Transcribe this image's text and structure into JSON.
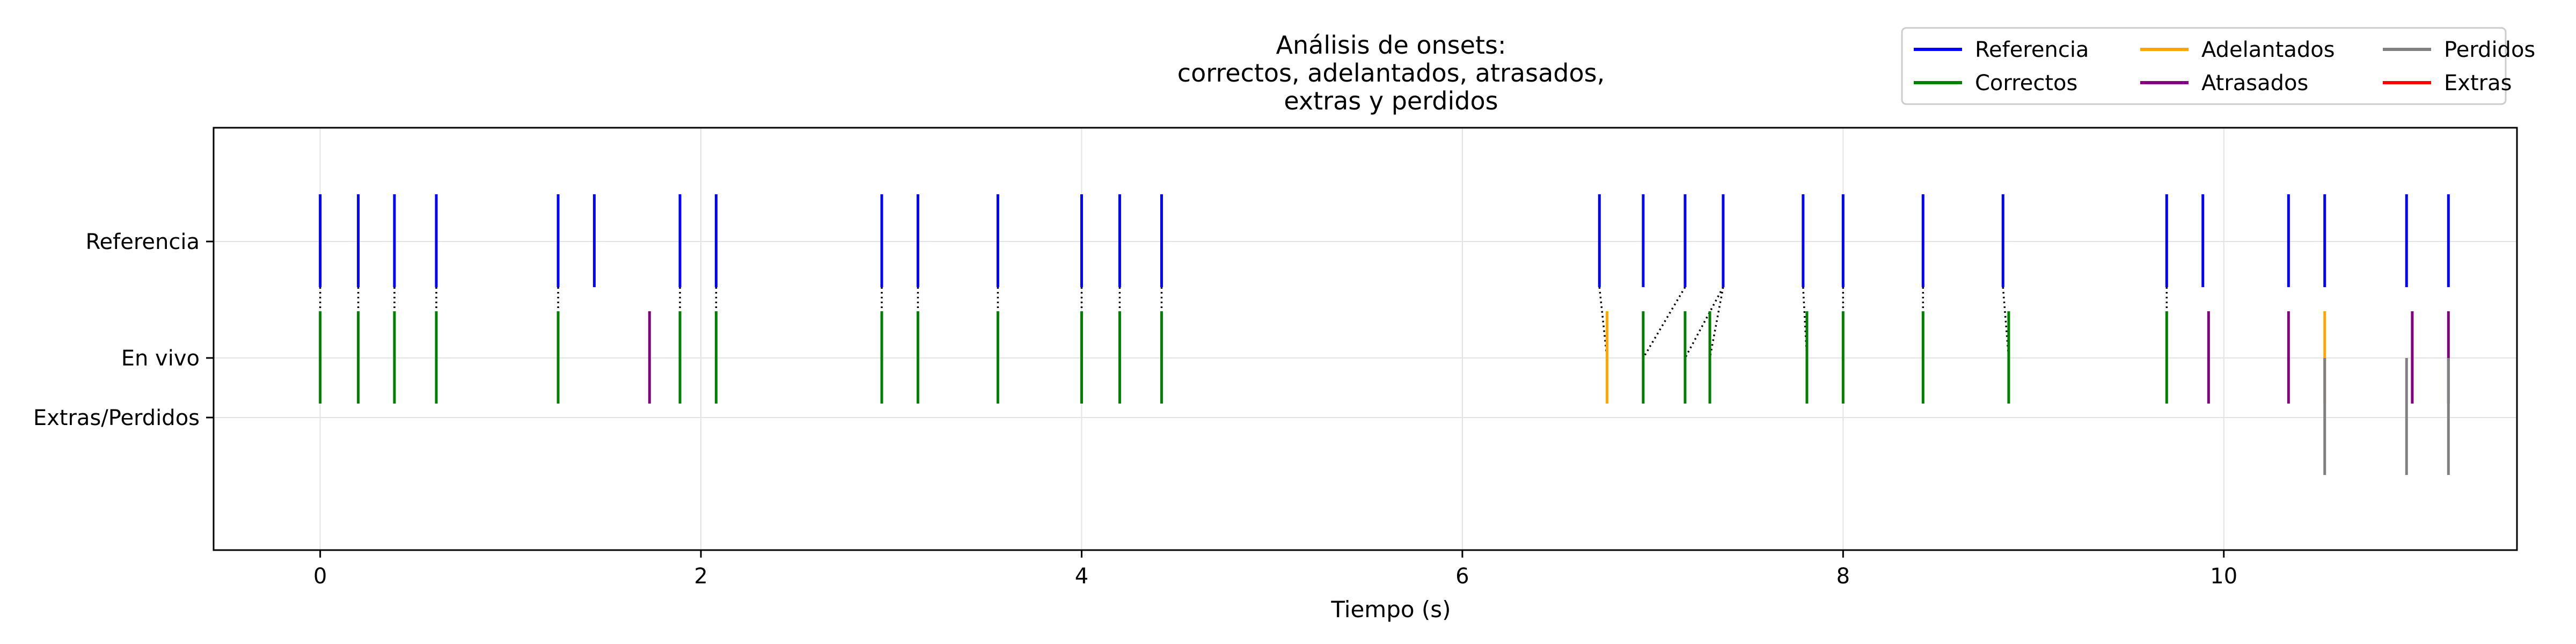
{
  "chart_data": {
    "type": "event-timeline",
    "title_lines": [
      "Análisis de onsets:",
      "correctos, adelantados, atrasados,",
      "extras y perdidos"
    ],
    "xlabel": "Tiempo (s)",
    "ylabel": "",
    "xlim": [
      -0.56,
      11.54
    ],
    "x_ticks": [
      0,
      2,
      4,
      6,
      8,
      10
    ],
    "grid": true,
    "legend_position": "top-right",
    "rows": [
      "Referencia",
      "En vivo",
      "Extras/Perdidos"
    ],
    "legend": [
      {
        "label": "Referencia",
        "color": "#0000ff"
      },
      {
        "label": "Correctos",
        "color": "#008000"
      },
      {
        "label": "Adelantados",
        "color": "#ffa500"
      },
      {
        "label": "Atrasados",
        "color": "#800080"
      },
      {
        "label": "Perdidos",
        "color": "#808080"
      },
      {
        "label": "Extras",
        "color": "#ff0000"
      }
    ],
    "reference_onsets": [
      0.0,
      0.2,
      0.39,
      0.61,
      1.25,
      1.44,
      1.89,
      2.08,
      2.95,
      3.14,
      3.56,
      4.0,
      4.2,
      4.42,
      6.72,
      6.95,
      7.17,
      7.37,
      7.79,
      8.0,
      8.42,
      8.84,
      9.7,
      9.89,
      10.34,
      10.53,
      10.96,
      11.18
    ],
    "live_onsets": [
      {
        "t": 0.0,
        "class": "Correctos"
      },
      {
        "t": 0.2,
        "class": "Correctos"
      },
      {
        "t": 0.39,
        "class": "Correctos"
      },
      {
        "t": 0.61,
        "class": "Correctos"
      },
      {
        "t": 1.25,
        "class": "Correctos"
      },
      {
        "t": 1.73,
        "class": "Atrasados"
      },
      {
        "t": 1.89,
        "class": "Correctos"
      },
      {
        "t": 2.08,
        "class": "Correctos"
      },
      {
        "t": 2.95,
        "class": "Correctos"
      },
      {
        "t": 3.14,
        "class": "Correctos"
      },
      {
        "t": 3.56,
        "class": "Correctos"
      },
      {
        "t": 4.0,
        "class": "Correctos"
      },
      {
        "t": 4.2,
        "class": "Correctos"
      },
      {
        "t": 4.42,
        "class": "Correctos"
      },
      {
        "t": 6.76,
        "class": "Adelantados"
      },
      {
        "t": 6.95,
        "class": "Correctos"
      },
      {
        "t": 7.17,
        "class": "Correctos"
      },
      {
        "t": 7.3,
        "class": "Correctos"
      },
      {
        "t": 7.81,
        "class": "Correctos"
      },
      {
        "t": 8.0,
        "class": "Correctos"
      },
      {
        "t": 8.42,
        "class": "Correctos"
      },
      {
        "t": 8.87,
        "class": "Correctos"
      },
      {
        "t": 9.7,
        "class": "Correctos"
      },
      {
        "t": 9.92,
        "class": "Atrasados"
      },
      {
        "t": 10.34,
        "class": "Atrasados"
      },
      {
        "t": 10.53,
        "class": "Adelantados"
      },
      {
        "t": 10.99,
        "class": "Atrasados"
      },
      {
        "t": 11.18,
        "class": "Atrasados"
      }
    ],
    "matches": [
      [
        0.0,
        0.0
      ],
      [
        0.2,
        0.2
      ],
      [
        0.39,
        0.39
      ],
      [
        0.61,
        0.61
      ],
      [
        1.25,
        1.25
      ],
      [
        1.89,
        1.89
      ],
      [
        2.08,
        2.08
      ],
      [
        2.95,
        2.95
      ],
      [
        3.14,
        3.14
      ],
      [
        3.56,
        3.56
      ],
      [
        4.0,
        4.0
      ],
      [
        4.2,
        4.2
      ],
      [
        4.42,
        4.42
      ],
      [
        6.72,
        6.76
      ],
      [
        7.17,
        6.95
      ],
      [
        7.37,
        7.17
      ],
      [
        7.37,
        7.3
      ],
      [
        7.79,
        7.81
      ],
      [
        8.0,
        8.0
      ],
      [
        8.42,
        8.42
      ],
      [
        8.84,
        8.87
      ],
      [
        9.7,
        9.7
      ]
    ],
    "missed_onsets": [
      10.53,
      10.96,
      11.18
    ],
    "extra_onsets": []
  }
}
